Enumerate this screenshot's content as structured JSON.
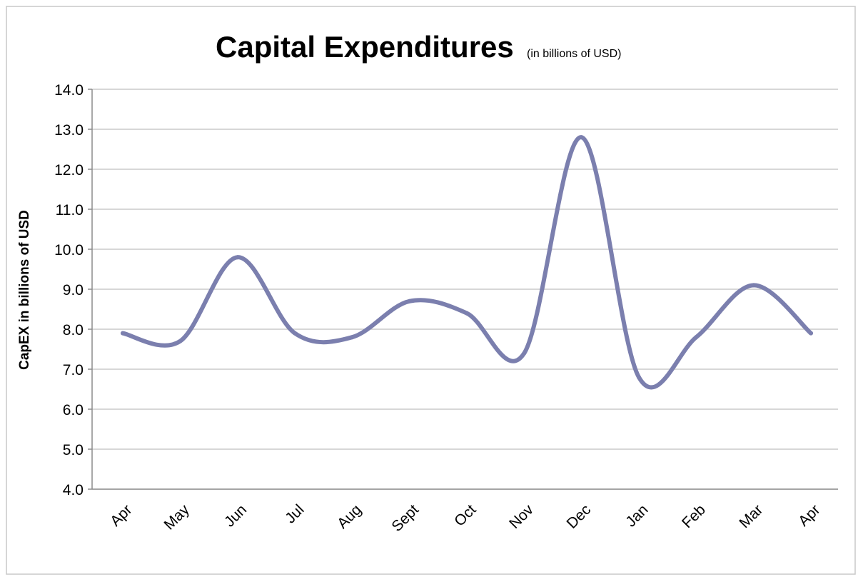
{
  "chart_data": {
    "type": "line",
    "title": "Capital Expenditures",
    "subtitle": "(in billions of USD)",
    "xlabel": "",
    "ylabel": "CapEX in billions of USD",
    "categories": [
      "Apr",
      "May",
      "Jun",
      "Jul",
      "Aug",
      "Sept",
      "Oct",
      "Nov",
      "Dec",
      "Jan",
      "Feb",
      "Mar",
      "Apr"
    ],
    "series": [
      {
        "name": "CapEX",
        "values": [
          7.9,
          7.7,
          9.8,
          7.9,
          7.8,
          8.7,
          8.4,
          7.4,
          12.8,
          6.8,
          7.8,
          9.1,
          7.9
        ]
      }
    ],
    "ylim": [
      4.0,
      14.0
    ],
    "yticks": [
      "4.0",
      "5.0",
      "6.0",
      "7.0",
      "8.0",
      "9.0",
      "10.0",
      "11.0",
      "12.0",
      "13.0",
      "14.0"
    ],
    "grid": true,
    "smooth": true,
    "line_color": "#7b7fae"
  }
}
